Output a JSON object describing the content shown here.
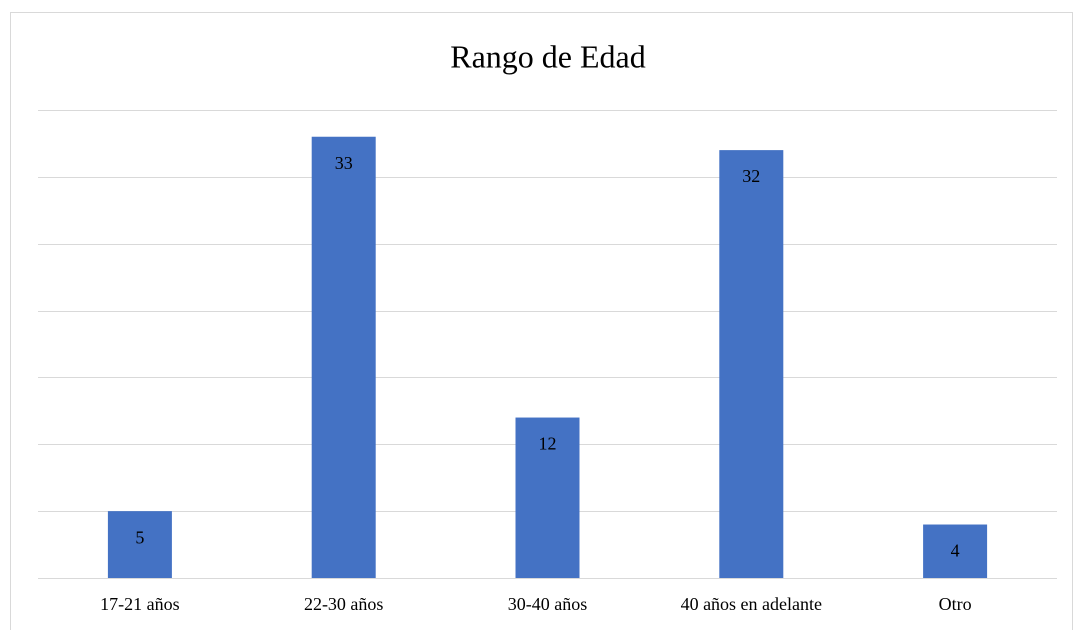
{
  "chart_data": {
    "type": "bar",
    "title": "Rango de Edad",
    "categories": [
      "17-21 años",
      "22-30 años",
      "30-40 años",
      "40 años en adelante",
      "Otro"
    ],
    "values": [
      5,
      33,
      12,
      32,
      4
    ],
    "color": "#4472c4",
    "ylim": [
      0,
      35
    ],
    "yticks": [
      0,
      5,
      10,
      15,
      20,
      25,
      30,
      35
    ],
    "grid": true
  }
}
